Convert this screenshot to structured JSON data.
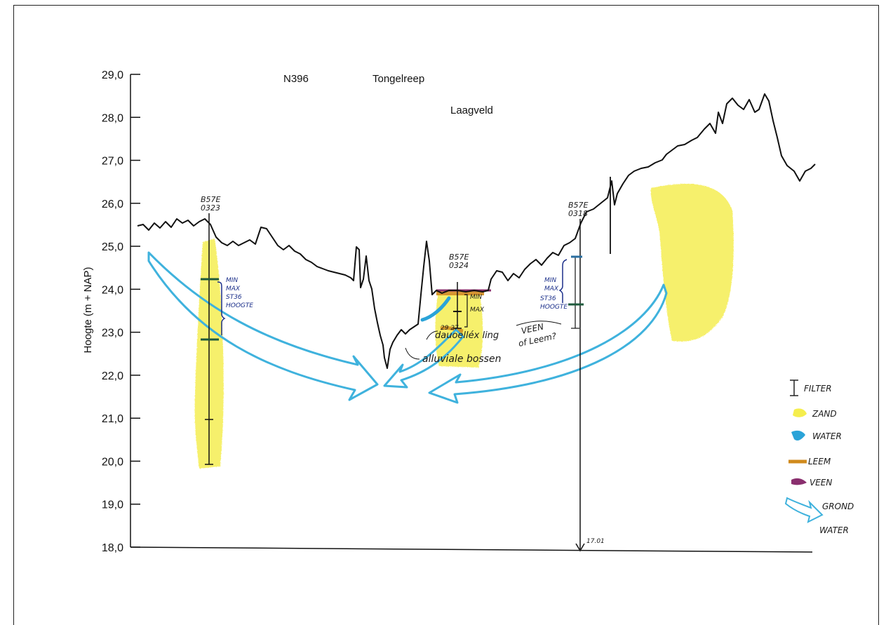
{
  "diagram": {
    "y_axis": {
      "label": "Hoogte (m + NAP)",
      "min": 18.0,
      "max": 29.0,
      "ticks": [
        "29,0",
        "28,0",
        "27,0",
        "26,0",
        "25,0",
        "24,0",
        "23,0",
        "22,0",
        "21,0",
        "20,0",
        "19,0",
        "18,0"
      ]
    },
    "site_labels": {
      "n396": "N396",
      "tongelreep": "Tongelreep",
      "laagveld": "Laagveld"
    },
    "boreholes": [
      {
        "id_line1": "B57E",
        "id_line2": "0323",
        "filter_lines": [
          "MIN",
          "MAX",
          "ST36",
          "HOOGTE"
        ]
      },
      {
        "id_line1": "B57E",
        "id_line2": "0324",
        "filter_lines": [
          "MIN",
          "MAX"
        ],
        "note": "29 27"
      },
      {
        "id_line1": "B57E",
        "id_line2": "0318",
        "filter_lines": [
          "MIN",
          "MAX",
          "ST36",
          "HOOGTE"
        ],
        "bottom_value": "17.01"
      }
    ],
    "annotations": {
      "dekzand": "dauoelléx ling",
      "alluvial": "alluviale bossen",
      "veen_q1": "VEEN",
      "veen_q2": "of Leem?"
    },
    "legend": [
      {
        "symbol": "filter-icon",
        "label": "FILTER",
        "color": "#222222"
      },
      {
        "symbol": "zand-swatch",
        "label": "ZAND",
        "color": "#f4ec3a"
      },
      {
        "symbol": "water-swatch",
        "label": "WATER",
        "color": "#2aa3d8"
      },
      {
        "symbol": "leem-swatch",
        "label": "LEEM",
        "color": "#d08a1c"
      },
      {
        "symbol": "veen-swatch",
        "label": "VEEN",
        "color": "#8a2f6e"
      },
      {
        "symbol": "groundwater-arrow-icon",
        "label": "GROND",
        "label2": "WATER",
        "color": "#3fb2dd"
      }
    ],
    "colors": {
      "profile": "#111111",
      "sand": "#f4ec3a",
      "water": "#2aa3d8",
      "leem": "#d08a1c",
      "veen": "#8a2f6e",
      "ink_blue": "#1b2f8a",
      "filter_green": "#1e5a3c"
    }
  }
}
